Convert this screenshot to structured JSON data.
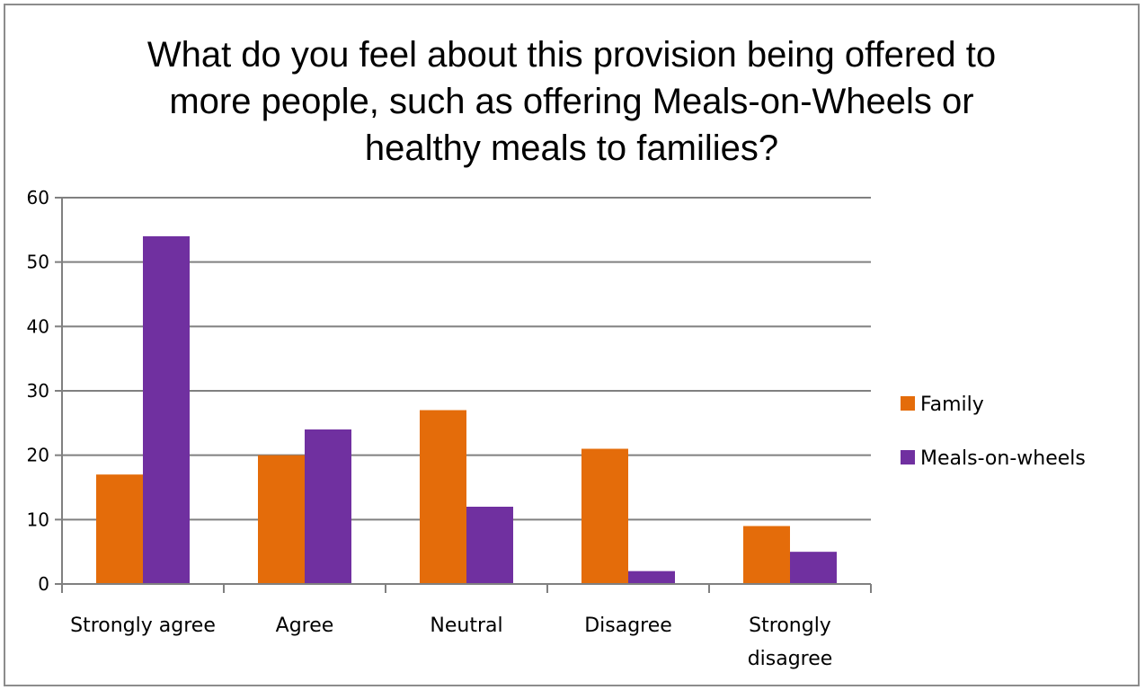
{
  "chart_data": {
    "type": "bar",
    "title": "What do you feel about this provision being offered to more people, such as offering Meals-on-Wheels or healthy meals to families?",
    "title_lines": [
      "What do you feel about this provision being offered to",
      "more people, such as offering Meals-on-Wheels or",
      "healthy meals to families?"
    ],
    "categories": [
      "Strongly agree",
      "Agree",
      "Neutral",
      "Disagree",
      "Strongly disagree"
    ],
    "category_label_lines": [
      [
        "Strongly agree"
      ],
      [
        "Agree"
      ],
      [
        "Neutral"
      ],
      [
        "Disagree"
      ],
      [
        "Strongly",
        "disagree"
      ]
    ],
    "series": [
      {
        "name": "Family",
        "values": [
          17,
          20,
          27,
          21,
          9
        ],
        "color": "#E46C0A"
      },
      {
        "name": "Meals-on-wheels",
        "values": [
          54,
          24,
          12,
          2,
          5
        ],
        "color": "#7030A0"
      }
    ],
    "ylim": [
      0,
      60
    ],
    "yticks": [
      0,
      10,
      20,
      30,
      40,
      50,
      60
    ],
    "xlabel": "",
    "ylabel": "",
    "grid": true,
    "legend_position": "right",
    "colors": {
      "gridline": "#808080",
      "axis": "#808080",
      "frame": "#8c8c8c"
    }
  }
}
